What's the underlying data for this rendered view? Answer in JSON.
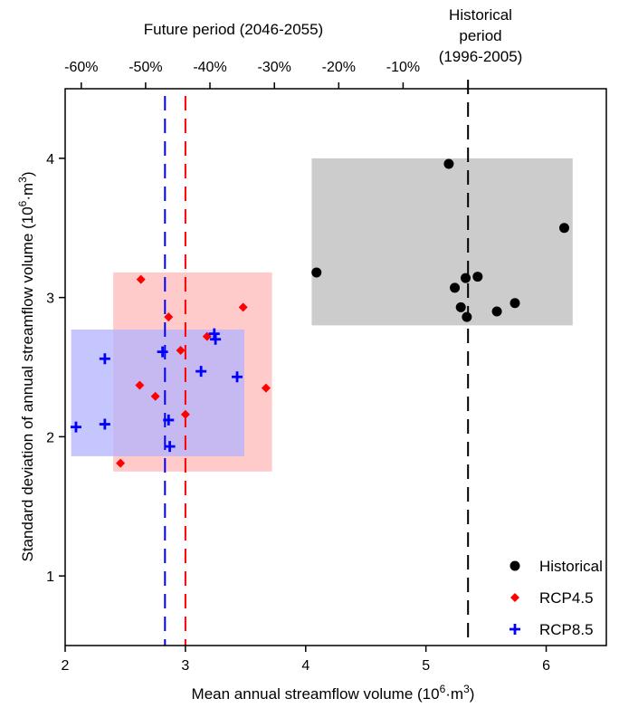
{
  "chart_data": {
    "type": "scatter",
    "xlabel": "Mean annual streamflow volume (10",
    "xlabel_sup": "6",
    "xlabel_end": "·m",
    "xlabel_sup2": "3",
    "xlabel_close": ")",
    "ylabel": "Standard deviation of annual streamflow volume (10",
    "ylabel_sup": "6",
    "ylabel_end": "·m",
    "ylabel_sup2": "3",
    "ylabel_close": ")",
    "top_title": "Future period (2046-2055)",
    "hist_label_line1": "Historical",
    "hist_label_line2": "period",
    "hist_label_line3": "(1996-2005)",
    "xlim": [
      2.0,
      6.5
    ],
    "ylim": [
      0.5,
      4.5
    ],
    "x_ticks": [
      2,
      3,
      4,
      5,
      6
    ],
    "y_ticks": [
      1,
      2,
      3,
      4
    ],
    "top_ticks": [
      {
        "x": 2.134,
        "label": "-60%"
      },
      {
        "x": 2.669,
        "label": "-50%"
      },
      {
        "x": 3.204,
        "label": "-40%"
      },
      {
        "x": 3.74,
        "label": "-30%"
      },
      {
        "x": 4.275,
        "label": "-20%"
      },
      {
        "x": 4.81,
        "label": "-10%"
      }
    ],
    "colors": {
      "Historical": "#000000",
      "RCP4.5": "#ff0000",
      "RCP8.5": "#0000ff",
      "hist_box": "#bfbfbf",
      "rcp45_box": "#ffb3b3",
      "rcp85_box": "#b3b3ff"
    },
    "vlines": [
      {
        "series": "Historical",
        "x": 5.35
      },
      {
        "series": "RCP4.5",
        "x": 3.0
      },
      {
        "series": "RCP8.5",
        "x": 2.83
      }
    ],
    "boxes": [
      {
        "series": "Historical",
        "x": [
          4.05,
          6.22
        ],
        "y": [
          2.8,
          4.0
        ]
      },
      {
        "series": "RCP4.5",
        "x": [
          2.4,
          3.72
        ],
        "y": [
          1.75,
          3.18
        ]
      },
      {
        "series": "RCP8.5",
        "x": [
          2.05,
          3.49
        ],
        "y": [
          1.86,
          2.77
        ]
      }
    ],
    "series": [
      {
        "name": "Historical",
        "marker": "circle",
        "points": [
          [
            5.19,
            3.96
          ],
          [
            6.15,
            3.5
          ],
          [
            4.09,
            3.18
          ],
          [
            5.33,
            3.14
          ],
          [
            5.43,
            3.15
          ],
          [
            5.24,
            3.07
          ],
          [
            5.29,
            2.93
          ],
          [
            5.74,
            2.96
          ],
          [
            5.59,
            2.9
          ],
          [
            5.34,
            2.86
          ]
        ]
      },
      {
        "name": "RCP4.5",
        "marker": "diamond",
        "points": [
          [
            2.63,
            3.13
          ],
          [
            3.48,
            2.93
          ],
          [
            2.86,
            2.86
          ],
          [
            3.18,
            2.72
          ],
          [
            2.96,
            2.62
          ],
          [
            2.62,
            2.37
          ],
          [
            3.67,
            2.35
          ],
          [
            2.75,
            2.29
          ],
          [
            3.0,
            2.16
          ],
          [
            2.46,
            1.81
          ]
        ]
      },
      {
        "name": "RCP8.5",
        "marker": "plus",
        "points": [
          [
            3.24,
            2.74
          ],
          [
            3.25,
            2.7
          ],
          [
            2.81,
            2.61
          ],
          [
            2.33,
            2.56
          ],
          [
            3.13,
            2.47
          ],
          [
            3.43,
            2.43
          ],
          [
            2.86,
            2.12
          ],
          [
            2.09,
            2.07
          ],
          [
            2.33,
            2.09
          ],
          [
            2.87,
            1.93
          ]
        ]
      }
    ],
    "legend": {
      "placement": "bottom-right",
      "entries": [
        "Historical",
        "RCP4.5",
        "RCP8.5"
      ]
    }
  }
}
